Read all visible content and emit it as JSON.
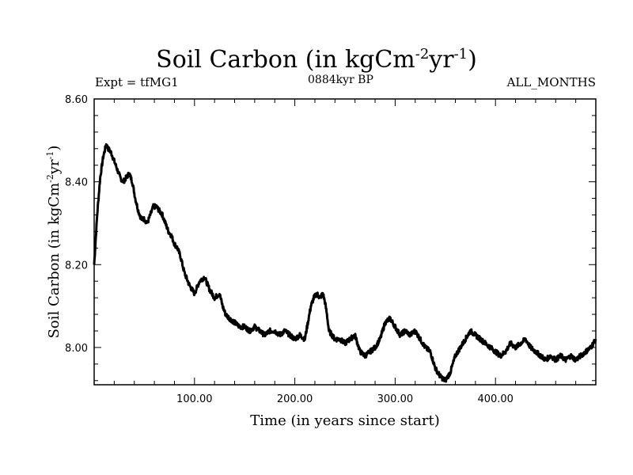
{
  "chart_data": {
    "type": "line",
    "title_main": "Soil Carbon (in kgCm",
    "title_exp1": "-2",
    "title_mid": "yr",
    "title_exp2": "-1",
    "title_end": ")",
    "left_note": "Expt = tfMG1",
    "center_note": "0884kyr BP",
    "right_note": "ALL_MONTHS",
    "xlabel": "Time (in years since start)",
    "ylabel_main": "Soil Carbon (in kgCm",
    "ylabel_exp1": "-2",
    "ylabel_mid": "yr",
    "ylabel_exp2": "-1",
    "ylabel_end": ")",
    "xlim": [
      0,
      500
    ],
    "ylim": [
      7.91,
      8.6
    ],
    "x_ticks": [
      100,
      200,
      300,
      400
    ],
    "x_tick_labels": [
      "100.00",
      "200.00",
      "300.00",
      "400.00"
    ],
    "y_ticks": [
      8.0,
      8.2,
      8.4,
      8.6
    ],
    "y_tick_labels": [
      "8.00",
      "8.20",
      "8.40",
      "8.60"
    ],
    "series": [
      {
        "color": "#000000",
        "x": [
          0,
          3,
          6,
          9,
          12,
          14,
          17,
          20,
          23,
          26,
          29,
          32,
          35,
          38,
          41,
          44,
          47,
          50,
          53,
          56,
          59,
          62,
          65,
          68,
          71,
          74,
          77,
          80,
          83,
          86,
          90,
          95,
          100,
          105,
          110,
          115,
          120,
          125,
          128,
          131,
          135,
          140,
          145,
          150,
          155,
          160,
          165,
          170,
          175,
          180,
          185,
          190,
          195,
          200,
          205,
          210,
          213,
          216,
          219,
          222,
          225,
          228,
          230,
          232,
          234,
          237,
          240,
          245,
          250,
          255,
          260,
          265,
          270,
          275,
          280,
          285,
          290,
          295,
          300,
          305,
          310,
          315,
          320,
          325,
          330,
          335,
          340,
          345,
          350,
          355,
          360,
          365,
          370,
          375,
          380,
          385,
          390,
          395,
          400,
          405,
          410,
          415,
          420,
          425,
          430,
          435,
          440,
          445,
          450,
          455,
          460,
          465,
          470,
          475,
          480,
          485,
          490,
          495,
          500
        ],
        "y": [
          8.2,
          8.32,
          8.41,
          8.46,
          8.49,
          8.48,
          8.47,
          8.45,
          8.43,
          8.41,
          8.4,
          8.41,
          8.42,
          8.4,
          8.36,
          8.33,
          8.31,
          8.31,
          8.3,
          8.32,
          8.34,
          8.34,
          8.33,
          8.32,
          8.3,
          8.28,
          8.27,
          8.25,
          8.24,
          8.22,
          8.18,
          8.15,
          8.13,
          8.16,
          8.17,
          8.14,
          8.12,
          8.13,
          8.1,
          8.08,
          8.07,
          8.06,
          8.05,
          8.05,
          8.04,
          8.05,
          8.04,
          8.03,
          8.04,
          8.04,
          8.03,
          8.04,
          8.03,
          8.02,
          8.03,
          8.02,
          8.06,
          8.1,
          8.12,
          8.13,
          8.12,
          8.13,
          8.11,
          8.08,
          8.04,
          8.03,
          8.02,
          8.02,
          8.01,
          8.02,
          8.03,
          7.99,
          7.98,
          7.99,
          8.0,
          8.02,
          8.06,
          8.07,
          8.05,
          8.03,
          8.04,
          8.03,
          8.04,
          8.02,
          8.0,
          7.99,
          7.95,
          7.93,
          7.92,
          7.94,
          7.98,
          8.0,
          8.02,
          8.04,
          8.03,
          8.02,
          8.01,
          8.0,
          7.99,
          7.98,
          7.99,
          8.01,
          8.0,
          8.01,
          8.02,
          8.0,
          7.99,
          7.98,
          7.97,
          7.98,
          7.97,
          7.98,
          7.97,
          7.98,
          7.97,
          7.98,
          7.99,
          8.0,
          8.02
        ]
      }
    ],
    "grid": false,
    "legend": "none"
  }
}
